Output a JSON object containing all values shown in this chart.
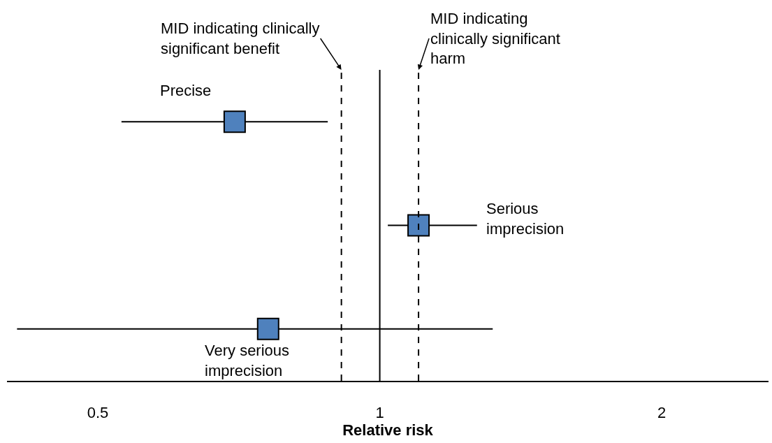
{
  "chart_data": {
    "type": "scatter",
    "orientation": "horizontal",
    "xlabel": "Relative risk",
    "log": "x",
    "xlim": [
      0.4,
      2.6
    ],
    "xticks": [
      0.5,
      1,
      2
    ],
    "tick_labels": "x",
    "marker": "square",
    "categories": [
      null,
      null,
      null
    ],
    "series": [
      {
        "name": "Precise",
        "color": "#4f81bd",
        "values": [
          0.7,
          null,
          null
        ],
        "errors": [
          [
            0.53,
            0.88
          ],
          null,
          null
        ]
      },
      {
        "name": "Serious imprecision",
        "color": "#4f81bd",
        "values": [
          null,
          1.1,
          null
        ],
        "errors": [
          null,
          [
            1.02,
            1.27
          ],
          null
        ]
      },
      {
        "name": "Very serious imprecision",
        "color": "#4f81bd",
        "values": [
          null,
          null,
          0.76
        ],
        "errors": [
          null,
          null,
          [
            0.41,
            1.32
          ]
        ]
      }
    ],
    "ref_lines": [
      {
        "axis": "x",
        "value": 0.91,
        "label": "MID indicating clinically significant benefit",
        "line_style": "dashed"
      },
      {
        "axis": "x",
        "value": 1,
        "line_style": "solid"
      },
      {
        "axis": "x",
        "value": 1.1,
        "label": "MID indicating clinically significant harm",
        "line_style": "dashed"
      }
    ]
  }
}
